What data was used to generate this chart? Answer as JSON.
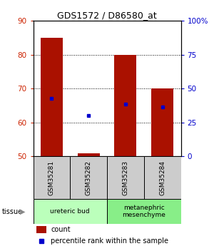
{
  "title": "GDS1572 / D86580_at",
  "samples": [
    "GSM35281",
    "GSM35282",
    "GSM35283",
    "GSM35284"
  ],
  "count_values": [
    85,
    50.8,
    80,
    70
  ],
  "count_base": 50,
  "percentile_values": [
    67,
    62,
    65.5,
    64.5
  ],
  "ylim_left": [
    50,
    90
  ],
  "ylim_right": [
    0,
    100
  ],
  "yticks_left": [
    50,
    60,
    70,
    80,
    90
  ],
  "yticks_right": [
    0,
    25,
    50,
    75,
    100
  ],
  "ytick_labels_right": [
    "0",
    "25",
    "50",
    "75",
    "100%"
  ],
  "tissue_groups": [
    {
      "label": "ureteric bud",
      "samples": [
        0,
        1
      ],
      "color": "#bbffbb"
    },
    {
      "label": "metanephric\nmesenchyme",
      "samples": [
        2,
        3
      ],
      "color": "#88ee88"
    }
  ],
  "bar_color": "#aa1100",
  "dot_color": "#0000cc",
  "left_tick_color": "#cc2200",
  "right_tick_color": "#0000cc",
  "bg_color": "#ffffff",
  "legend_count_color": "#aa1100",
  "legend_dot_color": "#0000cc",
  "bar_width": 0.6,
  "sample_box_color": "#cccccc"
}
